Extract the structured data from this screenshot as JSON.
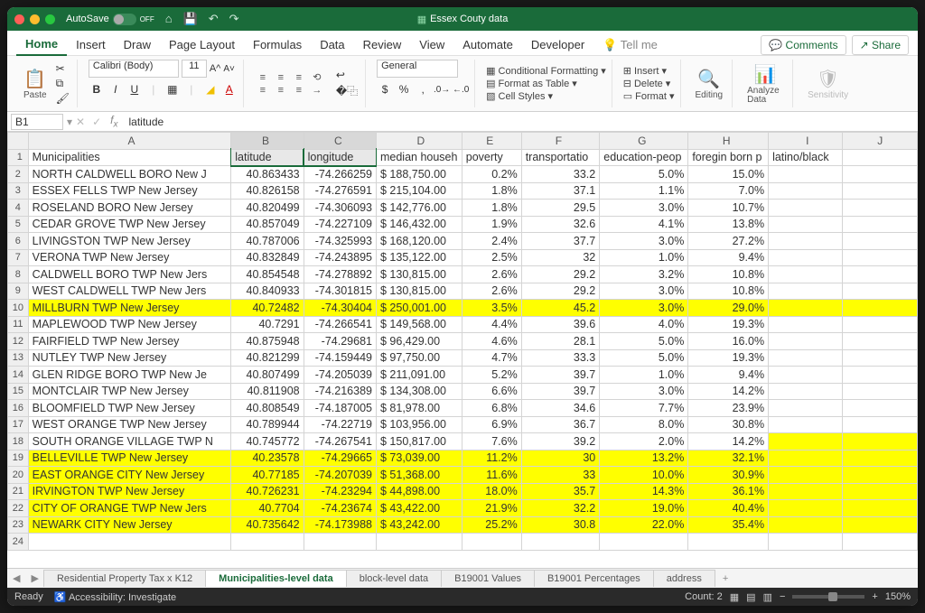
{
  "titlebar": {
    "autosave_label": "AutoSave",
    "autosave_state": "OFF",
    "doc_title": "Essex Couty data"
  },
  "ribbonTabs": [
    "Home",
    "Insert",
    "Draw",
    "Page Layout",
    "Formulas",
    "Data",
    "Review",
    "View",
    "Automate",
    "Developer"
  ],
  "ribbonTabActive": 0,
  "tellme": "Tell me",
  "comments_btn": "Comments",
  "share_btn": "Share",
  "ribbon": {
    "paste": "Paste",
    "font_name": "Calibri (Body)",
    "font_size": "11",
    "number_format": "General",
    "cond_fmt": "Conditional Formatting",
    "fmt_table": "Format as Table",
    "cell_styles": "Cell Styles",
    "insert": "Insert",
    "delete": "Delete",
    "format": "Format",
    "editing": "Editing",
    "analyze": "Analyze Data",
    "sensitivity": "Sensitivity"
  },
  "namebox": "B1",
  "formula": "latitude",
  "columns": [
    "",
    "A",
    "B",
    "C",
    "D",
    "E",
    "F",
    "G",
    "H",
    "I",
    "J"
  ],
  "headerRow": [
    "Municipalities",
    "latitude",
    "longitude",
    "median househ",
    "poverty",
    "transportatio",
    "education-peop",
    "foregin born p",
    "latino/black",
    ""
  ],
  "rows": [
    {
      "n": 2,
      "a": "NORTH CALDWELL BORO New J",
      "b": "40.863433",
      "c": "-74.266259",
      "d": "$ 188,750.00",
      "e": "0.2%",
      "f": "33.2",
      "g": "5.0%",
      "h": "15.0%",
      "hl": false
    },
    {
      "n": 3,
      "a": "ESSEX FELLS TWP New Jersey",
      "b": "40.826158",
      "c": "-74.276591",
      "d": "$ 215,104.00",
      "e": "1.8%",
      "f": "37.1",
      "g": "1.1%",
      "h": "7.0%",
      "hl": false
    },
    {
      "n": 4,
      "a": "ROSELAND BORO New Jersey",
      "b": "40.820499",
      "c": "-74.306093",
      "d": "$ 142,776.00",
      "e": "1.8%",
      "f": "29.5",
      "g": "3.0%",
      "h": "10.7%",
      "hl": false
    },
    {
      "n": 5,
      "a": "CEDAR GROVE TWP New Jersey",
      "b": "40.857049",
      "c": "-74.227109",
      "d": "$ 146,432.00",
      "e": "1.9%",
      "f": "32.6",
      "g": "4.1%",
      "h": "13.8%",
      "hl": false
    },
    {
      "n": 6,
      "a": "LIVINGSTON TWP New Jersey",
      "b": "40.787006",
      "c": "-74.325993",
      "d": "$ 168,120.00",
      "e": "2.4%",
      "f": "37.7",
      "g": "3.0%",
      "h": "27.2%",
      "hl": false
    },
    {
      "n": 7,
      "a": "VERONA TWP New Jersey",
      "b": "40.832849",
      "c": "-74.243895",
      "d": "$ 135,122.00",
      "e": "2.5%",
      "f": "32",
      "g": "1.0%",
      "h": "9.4%",
      "hl": false
    },
    {
      "n": 8,
      "a": "CALDWELL BORO TWP New Jers",
      "b": "40.854548",
      "c": "-74.278892",
      "d": "$ 130,815.00",
      "e": "2.6%",
      "f": "29.2",
      "g": "3.2%",
      "h": "10.8%",
      "hl": false
    },
    {
      "n": 9,
      "a": "WEST CALDWELL TWP New Jers",
      "b": "40.840933",
      "c": "-74.301815",
      "d": "$ 130,815.00",
      "e": "2.6%",
      "f": "29.2",
      "g": "3.0%",
      "h": "10.8%",
      "hl": false
    },
    {
      "n": 10,
      "a": "MILLBURN TWP New Jersey",
      "b": "40.72482",
      "c": "-74.30404",
      "d": "$ 250,001.00",
      "e": "3.5%",
      "f": "45.2",
      "g": "3.0%",
      "h": "29.0%",
      "hl": true
    },
    {
      "n": 11,
      "a": "MAPLEWOOD TWP New Jersey",
      "b": "40.7291",
      "c": "-74.266541",
      "d": "$ 149,568.00",
      "e": "4.4%",
      "f": "39.6",
      "g": "4.0%",
      "h": "19.3%",
      "hl": false
    },
    {
      "n": 12,
      "a": "FAIRFIELD TWP New Jersey",
      "b": "40.875948",
      "c": "-74.29681",
      "d": "$   96,429.00",
      "e": "4.6%",
      "f": "28.1",
      "g": "5.0%",
      "h": "16.0%",
      "hl": false
    },
    {
      "n": 13,
      "a": "NUTLEY TWP New Jersey",
      "b": "40.821299",
      "c": "-74.159449",
      "d": "$   97,750.00",
      "e": "4.7%",
      "f": "33.3",
      "g": "5.0%",
      "h": "19.3%",
      "hl": false
    },
    {
      "n": 14,
      "a": "GLEN RIDGE BORO TWP New Je",
      "b": "40.807499",
      "c": "-74.205039",
      "d": "$ 211,091.00",
      "e": "5.2%",
      "f": "39.7",
      "g": "1.0%",
      "h": "9.4%",
      "hl": false
    },
    {
      "n": 15,
      "a": "MONTCLAIR TWP New Jersey",
      "b": "40.811908",
      "c": "-74.216389",
      "d": "$ 134,308.00",
      "e": "6.6%",
      "f": "39.7",
      "g": "3.0%",
      "h": "14.2%",
      "hl": false
    },
    {
      "n": 16,
      "a": "BLOOMFIELD TWP New Jersey",
      "b": "40.808549",
      "c": "-74.187005",
      "d": "$   81,978.00",
      "e": "6.8%",
      "f": "34.6",
      "g": "7.7%",
      "h": "23.9%",
      "hl": false
    },
    {
      "n": 17,
      "a": "WEST ORANGE TWP New Jersey",
      "b": "40.789944",
      "c": "-74.22719",
      "d": "$ 103,956.00",
      "e": "6.9%",
      "f": "36.7",
      "g": "8.0%",
      "h": "30.8%",
      "hl": false
    },
    {
      "n": 18,
      "a": "SOUTH ORANGE VILLAGE TWP N",
      "b": "40.745772",
      "c": "-74.267541",
      "d": "$ 150,817.00",
      "e": "7.6%",
      "f": "39.2",
      "g": "2.0%",
      "h": "14.2%",
      "hl": false,
      "hlTail": true
    },
    {
      "n": 19,
      "a": "BELLEVILLE TWP New Jersey",
      "b": "40.23578",
      "c": "-74.29665",
      "d": "$   73,039.00",
      "e": "11.2%",
      "f": "30",
      "g": "13.2%",
      "h": "32.1%",
      "hl": true
    },
    {
      "n": 20,
      "a": "EAST ORANGE CITY New Jersey",
      "b": "40.77185",
      "c": "-74.207039",
      "d": "$   51,368.00",
      "e": "11.6%",
      "f": "33",
      "g": "10.0%",
      "h": "30.9%",
      "hl": true
    },
    {
      "n": 21,
      "a": "IRVINGTON TWP New Jersey",
      "b": "40.726231",
      "c": "-74.23294",
      "d": "$   44,898.00",
      "e": "18.0%",
      "f": "35.7",
      "g": "14.3%",
      "h": "36.1%",
      "hl": true
    },
    {
      "n": 22,
      "a": "CITY OF ORANGE TWP New Jers",
      "b": "40.7704",
      "c": "-74.23674",
      "d": "$   43,422.00",
      "e": "21.9%",
      "f": "32.2",
      "g": "19.0%",
      "h": "40.4%",
      "hl": true
    },
    {
      "n": 23,
      "a": "NEWARK CITY New Jersey",
      "b": "40.735642",
      "c": "-74.173988",
      "d": "$   43,242.00",
      "e": "25.2%",
      "f": "30.8",
      "g": "22.0%",
      "h": "35.4%",
      "hl": true
    }
  ],
  "emptyRows": [
    24
  ],
  "sheetTabs": [
    "Residential Property Tax x K12",
    "Municipalities-level data",
    "block-level data",
    "B19001 Values",
    "B19001 Percentages",
    "address"
  ],
  "sheetTabActive": 1,
  "status": {
    "ready": "Ready",
    "access": "Accessibility: Investigate",
    "count": "Count: 2",
    "zoom": "150%"
  }
}
